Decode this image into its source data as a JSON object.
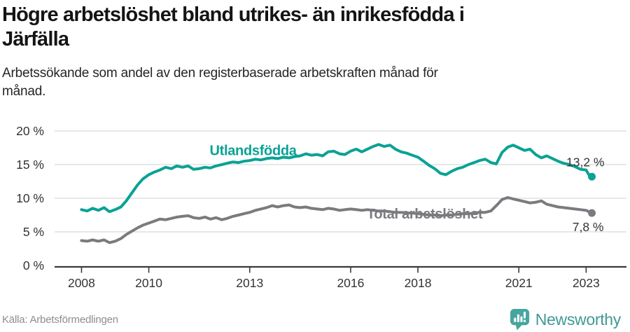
{
  "header": {
    "title": "Högre arbetslöshet bland utrikes- än inrikesfödda i Järfälla",
    "title_lines": [
      "Högre arbetslöshet bland utrikes- än inrikesfödda i",
      "Järfälla"
    ],
    "subtitle": "Arbetssökande som andel av den registerbaserade arbetskraften månad för månad.",
    "subtitle_lines": [
      "Arbetssökande som andel av den registerbaserade arbetskraften månad för",
      "månad."
    ]
  },
  "footer": {
    "source": "Källa: Arbetsförmedlingen",
    "brand": "Newsworthy"
  },
  "colors": {
    "teal": "#0aa295",
    "gray": "#7a7b7f",
    "grid": "#d9d9d9",
    "axis": "#3a3a3a",
    "tick_text": "#333333",
    "value_text": "#333333",
    "brand_icon": "#46a69f",
    "brand_text": "#3f9a94"
  },
  "chart_data": {
    "type": "line",
    "title": "Högre arbetslöshet bland utrikes- än inrikesfödda i Järfälla",
    "subtitle": "Arbetssökande som andel av den registerbaserade arbetskraften månad för månad.",
    "xlabel": "",
    "ylabel": "",
    "grid": "horizontal",
    "legend_position": "inline-labels",
    "xlim": [
      2007.2,
      2024.2
    ],
    "ylim": [
      0,
      20
    ],
    "x_ticks": [
      {
        "v": 2008,
        "label": "2008"
      },
      {
        "v": 2010,
        "label": "2010"
      },
      {
        "v": 2013,
        "label": "2013"
      },
      {
        "v": 2016,
        "label": "2016"
      },
      {
        "v": 2018,
        "label": "2018"
      },
      {
        "v": 2021,
        "label": "2021"
      },
      {
        "v": 2023,
        "label": "2023"
      }
    ],
    "y_ticks": [
      {
        "v": 0,
        "label": "0 %"
      },
      {
        "v": 5,
        "label": "5 %"
      },
      {
        "v": 10,
        "label": "10 %"
      },
      {
        "v": 15,
        "label": "15 %"
      },
      {
        "v": 20,
        "label": "20 %"
      }
    ],
    "series": [
      {
        "name": "Utlandsfödda",
        "color": "#0aa295",
        "end_value_label": "13,2 %",
        "end_value": 13.2,
        "label_at": [
          2013.1,
          16.4
        ],
        "end_label_offset": [
          18,
          -15
        ],
        "points": [
          [
            2008.0,
            8.3
          ],
          [
            2008.17,
            8.1
          ],
          [
            2008.33,
            8.5
          ],
          [
            2008.5,
            8.2
          ],
          [
            2008.67,
            8.6
          ],
          [
            2008.83,
            8.0
          ],
          [
            2009.0,
            8.3
          ],
          [
            2009.17,
            8.7
          ],
          [
            2009.33,
            9.6
          ],
          [
            2009.5,
            10.8
          ],
          [
            2009.67,
            12.0
          ],
          [
            2009.83,
            12.9
          ],
          [
            2010.0,
            13.5
          ],
          [
            2010.17,
            13.9
          ],
          [
            2010.33,
            14.2
          ],
          [
            2010.5,
            14.6
          ],
          [
            2010.67,
            14.4
          ],
          [
            2010.83,
            14.8
          ],
          [
            2011.0,
            14.6
          ],
          [
            2011.17,
            14.8
          ],
          [
            2011.33,
            14.3
          ],
          [
            2011.5,
            14.4
          ],
          [
            2011.67,
            14.6
          ],
          [
            2011.83,
            14.5
          ],
          [
            2012.0,
            14.8
          ],
          [
            2012.17,
            15.0
          ],
          [
            2012.33,
            15.2
          ],
          [
            2012.5,
            15.4
          ],
          [
            2012.67,
            15.3
          ],
          [
            2012.83,
            15.5
          ],
          [
            2013.0,
            15.6
          ],
          [
            2013.17,
            15.8
          ],
          [
            2013.33,
            15.7
          ],
          [
            2013.5,
            15.9
          ],
          [
            2013.67,
            16.0
          ],
          [
            2013.83,
            15.9
          ],
          [
            2014.0,
            16.1
          ],
          [
            2014.17,
            16.0
          ],
          [
            2014.33,
            16.2
          ],
          [
            2014.5,
            16.3
          ],
          [
            2014.67,
            16.6
          ],
          [
            2014.83,
            16.4
          ],
          [
            2015.0,
            16.5
          ],
          [
            2015.17,
            16.3
          ],
          [
            2015.33,
            16.9
          ],
          [
            2015.5,
            17.0
          ],
          [
            2015.67,
            16.6
          ],
          [
            2015.83,
            16.5
          ],
          [
            2016.0,
            17.0
          ],
          [
            2016.17,
            17.3
          ],
          [
            2016.33,
            16.9
          ],
          [
            2016.5,
            17.3
          ],
          [
            2016.67,
            17.7
          ],
          [
            2016.83,
            18.0
          ],
          [
            2017.0,
            17.7
          ],
          [
            2017.17,
            17.9
          ],
          [
            2017.33,
            17.3
          ],
          [
            2017.5,
            16.9
          ],
          [
            2017.67,
            16.7
          ],
          [
            2017.83,
            16.4
          ],
          [
            2018.0,
            16.1
          ],
          [
            2018.17,
            15.5
          ],
          [
            2018.33,
            14.9
          ],
          [
            2018.5,
            14.4
          ],
          [
            2018.67,
            13.7
          ],
          [
            2018.83,
            13.5
          ],
          [
            2019.0,
            14.0
          ],
          [
            2019.17,
            14.4
          ],
          [
            2019.33,
            14.6
          ],
          [
            2019.5,
            15.0
          ],
          [
            2019.67,
            15.3
          ],
          [
            2019.83,
            15.6
          ],
          [
            2020.0,
            15.8
          ],
          [
            2020.17,
            15.3
          ],
          [
            2020.33,
            15.1
          ],
          [
            2020.5,
            16.8
          ],
          [
            2020.67,
            17.6
          ],
          [
            2020.83,
            17.9
          ],
          [
            2021.0,
            17.5
          ],
          [
            2021.17,
            17.1
          ],
          [
            2021.33,
            17.3
          ],
          [
            2021.5,
            16.5
          ],
          [
            2021.67,
            16.0
          ],
          [
            2021.83,
            16.3
          ],
          [
            2022.0,
            15.9
          ],
          [
            2022.17,
            15.5
          ],
          [
            2022.33,
            15.2
          ],
          [
            2022.5,
            15.0
          ],
          [
            2022.67,
            14.7
          ],
          [
            2022.83,
            14.3
          ],
          [
            2023.0,
            14.2
          ],
          [
            2023.08,
            13.5
          ],
          [
            2023.17,
            13.2
          ]
        ]
      },
      {
        "name": "Total arbetslöshet",
        "color": "#7a7b7f",
        "end_value_label": "7,8 %",
        "end_value": 7.8,
        "label_at": [
          2018.2,
          7.0
        ],
        "end_label_offset": [
          17,
          26
        ],
        "points": [
          [
            2008.0,
            3.7
          ],
          [
            2008.17,
            3.6
          ],
          [
            2008.33,
            3.8
          ],
          [
            2008.5,
            3.6
          ],
          [
            2008.67,
            3.8
          ],
          [
            2008.83,
            3.4
          ],
          [
            2009.0,
            3.6
          ],
          [
            2009.17,
            4.0
          ],
          [
            2009.33,
            4.6
          ],
          [
            2009.5,
            5.1
          ],
          [
            2009.67,
            5.6
          ],
          [
            2009.83,
            6.0
          ],
          [
            2010.0,
            6.3
          ],
          [
            2010.17,
            6.6
          ],
          [
            2010.33,
            6.9
          ],
          [
            2010.5,
            6.8
          ],
          [
            2010.67,
            7.0
          ],
          [
            2010.83,
            7.2
          ],
          [
            2011.0,
            7.3
          ],
          [
            2011.17,
            7.4
          ],
          [
            2011.33,
            7.1
          ],
          [
            2011.5,
            7.0
          ],
          [
            2011.67,
            7.2
          ],
          [
            2011.83,
            6.9
          ],
          [
            2012.0,
            7.1
          ],
          [
            2012.17,
            6.8
          ],
          [
            2012.33,
            7.0
          ],
          [
            2012.5,
            7.3
          ],
          [
            2012.67,
            7.5
          ],
          [
            2012.83,
            7.7
          ],
          [
            2013.0,
            7.9
          ],
          [
            2013.17,
            8.2
          ],
          [
            2013.33,
            8.4
          ],
          [
            2013.5,
            8.6
          ],
          [
            2013.67,
            8.9
          ],
          [
            2013.83,
            8.7
          ],
          [
            2014.0,
            8.9
          ],
          [
            2014.17,
            9.0
          ],
          [
            2014.33,
            8.7
          ],
          [
            2014.5,
            8.6
          ],
          [
            2014.67,
            8.7
          ],
          [
            2014.83,
            8.5
          ],
          [
            2015.0,
            8.4
          ],
          [
            2015.17,
            8.3
          ],
          [
            2015.33,
            8.5
          ],
          [
            2015.5,
            8.4
          ],
          [
            2015.67,
            8.2
          ],
          [
            2015.83,
            8.3
          ],
          [
            2016.0,
            8.4
          ],
          [
            2016.17,
            8.3
          ],
          [
            2016.33,
            8.2
          ],
          [
            2016.5,
            8.3
          ],
          [
            2016.67,
            8.2
          ],
          [
            2016.83,
            8.1
          ],
          [
            2017.0,
            8.1
          ],
          [
            2017.17,
            8.0
          ],
          [
            2017.33,
            7.9
          ],
          [
            2017.5,
            7.9
          ],
          [
            2017.67,
            7.8
          ],
          [
            2017.83,
            7.8
          ],
          [
            2018.0,
            7.7
          ],
          [
            2018.17,
            7.6
          ],
          [
            2018.33,
            7.5
          ],
          [
            2018.5,
            7.5
          ],
          [
            2018.67,
            7.4
          ],
          [
            2018.83,
            7.5
          ],
          [
            2019.0,
            7.5
          ],
          [
            2019.17,
            7.6
          ],
          [
            2019.33,
            7.7
          ],
          [
            2019.5,
            7.7
          ],
          [
            2019.67,
            7.8
          ],
          [
            2019.83,
            7.9
          ],
          [
            2020.0,
            7.9
          ],
          [
            2020.17,
            8.1
          ],
          [
            2020.33,
            8.9
          ],
          [
            2020.5,
            9.8
          ],
          [
            2020.67,
            10.1
          ],
          [
            2020.83,
            9.9
          ],
          [
            2021.0,
            9.7
          ],
          [
            2021.17,
            9.5
          ],
          [
            2021.33,
            9.3
          ],
          [
            2021.5,
            9.4
          ],
          [
            2021.67,
            9.6
          ],
          [
            2021.83,
            9.1
          ],
          [
            2022.0,
            8.9
          ],
          [
            2022.17,
            8.7
          ],
          [
            2022.33,
            8.6
          ],
          [
            2022.5,
            8.5
          ],
          [
            2022.67,
            8.4
          ],
          [
            2022.83,
            8.3
          ],
          [
            2023.0,
            8.2
          ],
          [
            2023.08,
            8.0
          ],
          [
            2023.17,
            7.8
          ]
        ]
      }
    ]
  }
}
